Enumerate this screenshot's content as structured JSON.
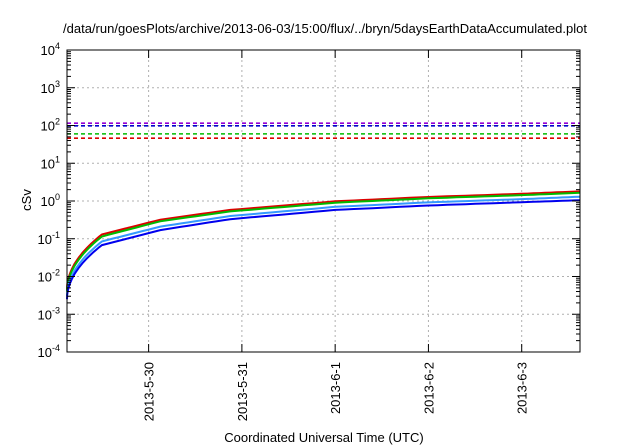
{
  "chart_data": {
    "type": "line",
    "title": "/data/run/goesPlots/archive/2013-06-03/15:00/flux/../bryn/5daysEarthDataAccumulated.plot",
    "xlabel": "Coordinated Universal Time (UTC)",
    "ylabel": "cSv",
    "x_range": [
      "2013-05-29 03:00",
      "2013-06-03 15:00"
    ],
    "x_ticks": [
      "2013-5-30",
      "2013-5-31",
      "2013-6-1",
      "2013-6-2",
      "2013-6-3"
    ],
    "y_scale": "log",
    "ylim": [
      0.0001,
      10000
    ],
    "y_ticks": [
      {
        "base": "10",
        "exp": "-4"
      },
      {
        "base": "10",
        "exp": "-3"
      },
      {
        "base": "10",
        "exp": "-2"
      },
      {
        "base": "10",
        "exp": "-1"
      },
      {
        "base": "10",
        "exp": "0"
      },
      {
        "base": "10",
        "exp": "1"
      },
      {
        "base": "10",
        "exp": "2"
      },
      {
        "base": "10",
        "exp": "3"
      },
      {
        "base": "10",
        "exp": "4"
      }
    ],
    "grid": true,
    "legend": "none",
    "curves": [
      {
        "color": "#dd0000",
        "values": [
          0.0045,
          0.13,
          0.32,
          0.58,
          0.98,
          1.28,
          1.55,
          1.8
        ]
      },
      {
        "color": "#00bb00",
        "values": [
          0.004,
          0.115,
          0.29,
          0.53,
          0.9,
          1.18,
          1.43,
          1.65
        ]
      },
      {
        "color": "#3399ff",
        "values": [
          0.003,
          0.085,
          0.21,
          0.4,
          0.7,
          0.92,
          1.12,
          1.3
        ]
      },
      {
        "color": "#0000ee",
        "values": [
          0.0025,
          0.068,
          0.17,
          0.33,
          0.58,
          0.76,
          0.93,
          1.05
        ]
      }
    ],
    "curve_x": [
      "2013-05-29 03:00",
      "2013-05-29 12:00",
      "2013-05-30 03:00",
      "2013-05-30 21:00",
      "2013-06-01 00:00",
      "2013-06-02 00:00",
      "2013-06-03 00:00",
      "2013-06-03 15:00"
    ],
    "thresholds": [
      {
        "color": "#9400d3",
        "value": 115
      },
      {
        "color": "#0000cc",
        "value": 98
      },
      {
        "color": "#00bb00",
        "value": 60
      },
      {
        "color": "#dd0000",
        "value": 46
      }
    ]
  }
}
